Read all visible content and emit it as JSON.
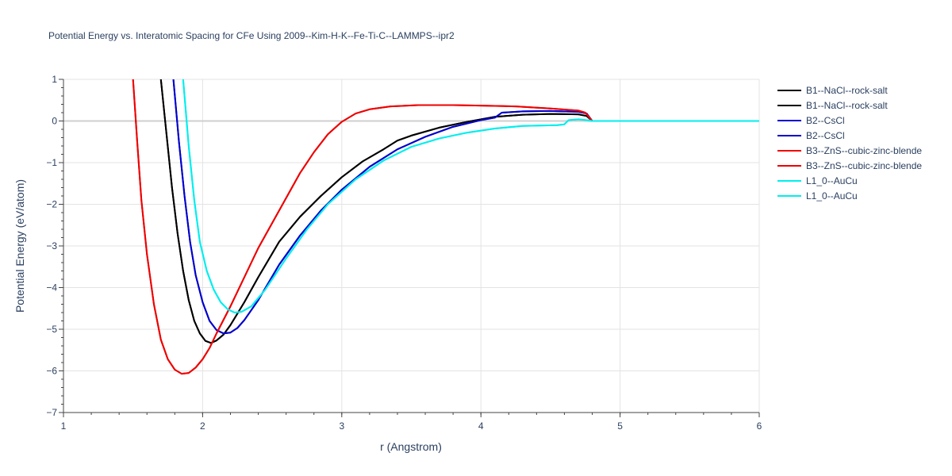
{
  "chart_data": {
    "type": "line",
    "title": "Potential Energy vs. Interatomic Spacing for CFe Using 2009--Kim-H-K--Fe-Ti-C--LAMMPS--ipr2",
    "xlabel": "r (Angstrom)",
    "ylabel": "Potential Energy (eV/atom)",
    "xlim": [
      1,
      6
    ],
    "ylim": [
      -7,
      1
    ],
    "x_ticks": [
      "1",
      "2",
      "3",
      "4",
      "5",
      "6"
    ],
    "y_ticks": [
      "1",
      "0",
      "−1",
      "−2",
      "−3",
      "−4",
      "−5",
      "−6",
      "−7"
    ],
    "grid": true,
    "legend_position": "right",
    "series": [
      {
        "name": "B1--NaCl--rock-salt",
        "color": "#000000",
        "points": [
          [
            1.7,
            1.0
          ],
          [
            1.74,
            -0.3
          ],
          [
            1.78,
            -1.6
          ],
          [
            1.82,
            -2.7
          ],
          [
            1.86,
            -3.6
          ],
          [
            1.9,
            -4.3
          ],
          [
            1.94,
            -4.8
          ],
          [
            1.98,
            -5.1
          ],
          [
            2.02,
            -5.28
          ],
          [
            2.06,
            -5.33
          ],
          [
            2.1,
            -5.27
          ],
          [
            2.15,
            -5.13
          ],
          [
            2.2,
            -4.9
          ],
          [
            2.3,
            -4.35
          ],
          [
            2.4,
            -3.75
          ],
          [
            2.55,
            -2.9
          ],
          [
            2.7,
            -2.3
          ],
          [
            2.85,
            -1.8
          ],
          [
            3.0,
            -1.35
          ],
          [
            3.15,
            -0.97
          ],
          [
            3.3,
            -0.68
          ],
          [
            3.4,
            -0.47
          ],
          [
            3.5,
            -0.35
          ],
          [
            3.7,
            -0.16
          ],
          [
            3.9,
            -0.02
          ],
          [
            4.1,
            0.1
          ],
          [
            4.3,
            0.15
          ],
          [
            4.5,
            0.17
          ],
          [
            4.7,
            0.16
          ],
          [
            4.76,
            0.12
          ],
          [
            4.8,
            0.0
          ],
          [
            6.0,
            0.0
          ]
        ]
      },
      {
        "name": "B1--NaCl--rock-salt",
        "color": "#000000",
        "points": [
          [
            1.7,
            1.0
          ],
          [
            1.74,
            -0.3
          ],
          [
            1.78,
            -1.6
          ],
          [
            1.82,
            -2.7
          ],
          [
            1.86,
            -3.6
          ],
          [
            1.9,
            -4.3
          ],
          [
            1.94,
            -4.8
          ],
          [
            1.98,
            -5.1
          ],
          [
            2.02,
            -5.28
          ],
          [
            2.06,
            -5.33
          ],
          [
            2.1,
            -5.27
          ],
          [
            2.15,
            -5.13
          ],
          [
            2.2,
            -4.9
          ],
          [
            2.3,
            -4.35
          ],
          [
            2.4,
            -3.75
          ],
          [
            2.55,
            -2.9
          ],
          [
            2.7,
            -2.3
          ],
          [
            2.85,
            -1.8
          ],
          [
            3.0,
            -1.35
          ],
          [
            3.15,
            -0.97
          ],
          [
            3.3,
            -0.68
          ],
          [
            3.4,
            -0.47
          ],
          [
            3.5,
            -0.35
          ],
          [
            3.7,
            -0.16
          ],
          [
            3.9,
            -0.02
          ],
          [
            4.1,
            0.1
          ],
          [
            4.3,
            0.15
          ],
          [
            4.5,
            0.17
          ],
          [
            4.7,
            0.16
          ],
          [
            4.76,
            0.12
          ],
          [
            4.8,
            0.0
          ],
          [
            6.0,
            0.0
          ]
        ]
      },
      {
        "name": "B2--CsCl",
        "color": "#0000cc",
        "points": [
          [
            1.79,
            1.0
          ],
          [
            1.83,
            -0.5
          ],
          [
            1.87,
            -1.8
          ],
          [
            1.91,
            -2.9
          ],
          [
            1.95,
            -3.7
          ],
          [
            2.0,
            -4.35
          ],
          [
            2.05,
            -4.8
          ],
          [
            2.1,
            -5.02
          ],
          [
            2.15,
            -5.1
          ],
          [
            2.2,
            -5.08
          ],
          [
            2.25,
            -4.97
          ],
          [
            2.3,
            -4.78
          ],
          [
            2.4,
            -4.3
          ],
          [
            2.55,
            -3.45
          ],
          [
            2.7,
            -2.75
          ],
          [
            2.85,
            -2.15
          ],
          [
            3.0,
            -1.65
          ],
          [
            3.2,
            -1.1
          ],
          [
            3.4,
            -0.68
          ],
          [
            3.6,
            -0.38
          ],
          [
            3.8,
            -0.14
          ],
          [
            4.0,
            0.02
          ],
          [
            4.1,
            0.08
          ],
          [
            4.15,
            0.2
          ],
          [
            4.3,
            0.23
          ],
          [
            4.5,
            0.24
          ],
          [
            4.7,
            0.22
          ],
          [
            4.76,
            0.18
          ],
          [
            4.8,
            0.0
          ],
          [
            6.0,
            0.0
          ]
        ]
      },
      {
        "name": "B2--CsCl",
        "color": "#0000cc",
        "points": [
          [
            1.79,
            1.0
          ],
          [
            1.83,
            -0.5
          ],
          [
            1.87,
            -1.8
          ],
          [
            1.91,
            -2.9
          ],
          [
            1.95,
            -3.7
          ],
          [
            2.0,
            -4.35
          ],
          [
            2.05,
            -4.8
          ],
          [
            2.1,
            -5.02
          ],
          [
            2.15,
            -5.1
          ],
          [
            2.2,
            -5.08
          ],
          [
            2.25,
            -4.97
          ],
          [
            2.3,
            -4.78
          ],
          [
            2.4,
            -4.3
          ],
          [
            2.55,
            -3.45
          ],
          [
            2.7,
            -2.75
          ],
          [
            2.85,
            -2.15
          ],
          [
            3.0,
            -1.65
          ],
          [
            3.2,
            -1.1
          ],
          [
            3.4,
            -0.68
          ],
          [
            3.6,
            -0.38
          ],
          [
            3.8,
            -0.14
          ],
          [
            4.0,
            0.02
          ],
          [
            4.1,
            0.08
          ],
          [
            4.15,
            0.2
          ],
          [
            4.3,
            0.23
          ],
          [
            4.5,
            0.24
          ],
          [
            4.7,
            0.22
          ],
          [
            4.76,
            0.18
          ],
          [
            4.8,
            0.0
          ],
          [
            6.0,
            0.0
          ]
        ]
      },
      {
        "name": "B3--ZnS--cubic-zinc-blende",
        "color": "#ee0000",
        "points": [
          [
            1.5,
            1.0
          ],
          [
            1.53,
            -0.5
          ],
          [
            1.56,
            -1.9
          ],
          [
            1.6,
            -3.2
          ],
          [
            1.65,
            -4.4
          ],
          [
            1.7,
            -5.25
          ],
          [
            1.75,
            -5.72
          ],
          [
            1.8,
            -5.97
          ],
          [
            1.85,
            -6.07
          ],
          [
            1.9,
            -6.05
          ],
          [
            1.95,
            -5.92
          ],
          [
            2.0,
            -5.72
          ],
          [
            2.05,
            -5.45
          ],
          [
            2.1,
            -5.1
          ],
          [
            2.2,
            -4.45
          ],
          [
            2.3,
            -3.75
          ],
          [
            2.4,
            -3.05
          ],
          [
            2.5,
            -2.45
          ],
          [
            2.6,
            -1.85
          ],
          [
            2.7,
            -1.25
          ],
          [
            2.8,
            -0.75
          ],
          [
            2.9,
            -0.32
          ],
          [
            3.0,
            -0.02
          ],
          [
            3.1,
            0.18
          ],
          [
            3.2,
            0.28
          ],
          [
            3.35,
            0.35
          ],
          [
            3.55,
            0.38
          ],
          [
            3.8,
            0.38
          ],
          [
            4.0,
            0.37
          ],
          [
            4.25,
            0.35
          ],
          [
            4.5,
            0.3
          ],
          [
            4.7,
            0.25
          ],
          [
            4.75,
            0.2
          ],
          [
            4.78,
            0.08
          ],
          [
            4.8,
            0.0
          ],
          [
            6.0,
            0.0
          ]
        ]
      },
      {
        "name": "B3--ZnS--cubic-zinc-blende",
        "color": "#ee0000",
        "points": [
          [
            1.5,
            1.0
          ],
          [
            1.53,
            -0.5
          ],
          [
            1.56,
            -1.9
          ],
          [
            1.6,
            -3.2
          ],
          [
            1.65,
            -4.4
          ],
          [
            1.7,
            -5.25
          ],
          [
            1.75,
            -5.72
          ],
          [
            1.8,
            -5.97
          ],
          [
            1.85,
            -6.07
          ],
          [
            1.9,
            -6.05
          ],
          [
            1.95,
            -5.92
          ],
          [
            2.0,
            -5.72
          ],
          [
            2.05,
            -5.45
          ],
          [
            2.1,
            -5.1
          ],
          [
            2.2,
            -4.45
          ],
          [
            2.3,
            -3.75
          ],
          [
            2.4,
            -3.05
          ],
          [
            2.5,
            -2.45
          ],
          [
            2.6,
            -1.85
          ],
          [
            2.7,
            -1.25
          ],
          [
            2.8,
            -0.75
          ],
          [
            2.9,
            -0.32
          ],
          [
            3.0,
            -0.02
          ],
          [
            3.1,
            0.18
          ],
          [
            3.2,
            0.28
          ],
          [
            3.35,
            0.35
          ],
          [
            3.55,
            0.38
          ],
          [
            3.8,
            0.38
          ],
          [
            4.0,
            0.37
          ],
          [
            4.25,
            0.35
          ],
          [
            4.5,
            0.3
          ],
          [
            4.7,
            0.25
          ],
          [
            4.75,
            0.2
          ],
          [
            4.78,
            0.08
          ],
          [
            4.8,
            0.0
          ],
          [
            6.0,
            0.0
          ]
        ]
      },
      {
        "name": "L1_0--AuCu",
        "color": "#00eeee",
        "points": [
          [
            1.86,
            1.0
          ],
          [
            1.9,
            -0.6
          ],
          [
            1.94,
            -1.9
          ],
          [
            1.98,
            -2.9
          ],
          [
            2.03,
            -3.6
          ],
          [
            2.08,
            -4.05
          ],
          [
            2.13,
            -4.35
          ],
          [
            2.18,
            -4.52
          ],
          [
            2.23,
            -4.6
          ],
          [
            2.28,
            -4.58
          ],
          [
            2.35,
            -4.45
          ],
          [
            2.45,
            -4.05
          ],
          [
            2.6,
            -3.3
          ],
          [
            2.75,
            -2.6
          ],
          [
            2.9,
            -2.0
          ],
          [
            3.1,
            -1.4
          ],
          [
            3.3,
            -0.95
          ],
          [
            3.5,
            -0.62
          ],
          [
            3.7,
            -0.42
          ],
          [
            3.9,
            -0.28
          ],
          [
            4.1,
            -0.18
          ],
          [
            4.3,
            -0.12
          ],
          [
            4.55,
            -0.1
          ],
          [
            4.6,
            -0.08
          ],
          [
            4.63,
            0.02
          ],
          [
            4.7,
            0.04
          ],
          [
            4.76,
            0.02
          ],
          [
            4.8,
            0.0
          ],
          [
            6.0,
            0.0
          ]
        ]
      },
      {
        "name": "L1_0--AuCu",
        "color": "#00eeee",
        "points": [
          [
            1.86,
            1.0
          ],
          [
            1.9,
            -0.6
          ],
          [
            1.94,
            -1.9
          ],
          [
            1.98,
            -2.9
          ],
          [
            2.03,
            -3.6
          ],
          [
            2.08,
            -4.05
          ],
          [
            2.13,
            -4.35
          ],
          [
            2.18,
            -4.52
          ],
          [
            2.23,
            -4.6
          ],
          [
            2.28,
            -4.58
          ],
          [
            2.35,
            -4.45
          ],
          [
            2.45,
            -4.05
          ],
          [
            2.6,
            -3.3
          ],
          [
            2.75,
            -2.6
          ],
          [
            2.9,
            -2.0
          ],
          [
            3.1,
            -1.4
          ],
          [
            3.3,
            -0.95
          ],
          [
            3.5,
            -0.62
          ],
          [
            3.7,
            -0.42
          ],
          [
            3.9,
            -0.28
          ],
          [
            4.1,
            -0.18
          ],
          [
            4.3,
            -0.12
          ],
          [
            4.55,
            -0.1
          ],
          [
            4.6,
            -0.08
          ],
          [
            4.63,
            0.02
          ],
          [
            4.7,
            0.04
          ],
          [
            4.76,
            0.02
          ],
          [
            4.8,
            0.0
          ],
          [
            6.0,
            0.0
          ]
        ]
      }
    ]
  }
}
